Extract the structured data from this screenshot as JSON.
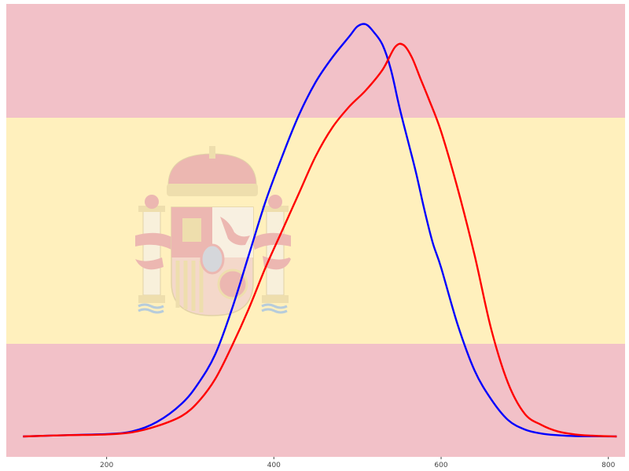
{
  "chart_data": {
    "type": "line",
    "title": "",
    "xlabel": "",
    "ylabel": "",
    "xlim": [
      80,
      820
    ],
    "ylim": [
      0,
      1
    ],
    "x_ticks": [
      200,
      400,
      600,
      800
    ],
    "x_tick_labels": [
      "200",
      "400",
      "600",
      "800"
    ],
    "grid": false,
    "legend": "none",
    "y_axis_visible": false,
    "background": {
      "description_icon": "spain-flag",
      "colors": {
        "red": "#f2c1c8",
        "yellow": "#fff0bd",
        "emblem": "#e6a5ae"
      }
    },
    "series": [
      {
        "color": "#0000ff",
        "x": [
          100,
          150,
          200,
          230,
          260,
          290,
          310,
          330,
          350,
          370,
          390,
          410,
          430,
          450,
          470,
          490,
          500,
          510,
          520,
          530,
          540,
          550,
          560,
          570,
          580,
          590,
          600,
          620,
          640,
          660,
          680,
          700,
          720,
          740,
          760,
          780,
          800,
          810
        ],
        "y": [
          0.0,
          0.003,
          0.006,
          0.012,
          0.035,
          0.08,
          0.13,
          0.2,
          0.31,
          0.44,
          0.57,
          0.68,
          0.78,
          0.86,
          0.92,
          0.97,
          0.995,
          1.0,
          0.98,
          0.95,
          0.89,
          0.8,
          0.72,
          0.64,
          0.55,
          0.47,
          0.41,
          0.27,
          0.16,
          0.09,
          0.04,
          0.017,
          0.007,
          0.003,
          0.001,
          0.0005,
          0.0002,
          0.0
        ]
      },
      {
        "color": "#ff0000",
        "x": [
          100,
          150,
          200,
          230,
          260,
          290,
          310,
          330,
          350,
          370,
          390,
          410,
          430,
          450,
          470,
          490,
          510,
          530,
          545,
          555,
          565,
          575,
          585,
          600,
          620,
          640,
          660,
          680,
          700,
          720,
          740,
          760,
          780,
          800,
          810
        ],
        "y": [
          0.0,
          0.003,
          0.005,
          0.01,
          0.025,
          0.05,
          0.085,
          0.14,
          0.22,
          0.31,
          0.41,
          0.5,
          0.59,
          0.68,
          0.75,
          0.8,
          0.84,
          0.89,
          0.945,
          0.95,
          0.92,
          0.87,
          0.82,
          0.74,
          0.6,
          0.44,
          0.26,
          0.13,
          0.055,
          0.028,
          0.012,
          0.005,
          0.002,
          0.0005,
          0.0
        ]
      }
    ]
  }
}
